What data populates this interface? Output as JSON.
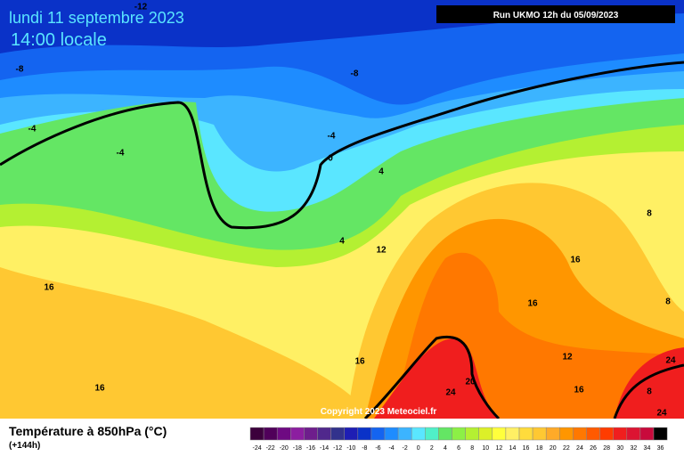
{
  "header": {
    "date": "lundi 11 septembre 2023",
    "time": "14:00 locale",
    "run": "Run UKMO 12h du 05/09/2023"
  },
  "copyright": "Copyright 2023 Meteociel.fr",
  "legend": {
    "title": "Température à 850hPa (°C)",
    "lead": "(+144h)",
    "ticks": [
      -24,
      -22,
      -20,
      -18,
      -16,
      -14,
      -12,
      -10,
      -8,
      -6,
      -4,
      -2,
      0,
      2,
      4,
      6,
      8,
      10,
      12,
      14,
      16,
      18,
      20,
      22,
      24,
      26,
      28,
      30,
      32,
      34,
      36
    ],
    "colors": [
      "#3c003c",
      "#50005a",
      "#6e0a82",
      "#8c1ea0",
      "#6e1e8c",
      "#50288c",
      "#32328c",
      "#1e1eb4",
      "#0a32c8",
      "#1464f0",
      "#1e8cff",
      "#3cb4ff",
      "#5ae6ff",
      "#50f0c8",
      "#64e664",
      "#8cf046",
      "#b4f032",
      "#dcf028",
      "#ffff3c",
      "#fff064",
      "#ffdc3c",
      "#ffc832",
      "#ffaa28",
      "#ff9600",
      "#ff7800",
      "#ff5a00",
      "#ff3c00",
      "#f01e1e",
      "#dc1432",
      "#c80a3c",
      "#000000"
    ]
  },
  "map_labels": [
    "-12",
    "-8",
    "-8",
    "-4",
    "-4",
    "-4",
    "0",
    "4",
    "4",
    "8",
    "8",
    "12",
    "16",
    "16",
    "16",
    "16",
    "12",
    "8",
    "16",
    "24",
    "20",
    "24",
    "24",
    "16"
  ]
}
